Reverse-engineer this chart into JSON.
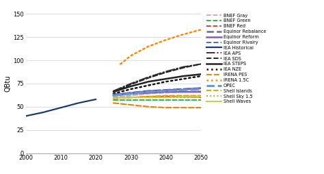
{
  "ylabel": "QBtu",
  "xlim": [
    2000,
    2050
  ],
  "ylim": [
    0,
    150
  ],
  "yticks": [
    0,
    25,
    50,
    75,
    100,
    125,
    150
  ],
  "xticks": [
    2000,
    2010,
    2020,
    2030,
    2040,
    2050
  ],
  "background_color": "#ffffff",
  "series": [
    {
      "name": "IEA Historical",
      "color": "#1b3a6b",
      "linestyle": "solid",
      "linewidth": 1.6,
      "x": [
        2000,
        2005,
        2010,
        2015,
        2020
      ],
      "y": [
        40,
        44,
        49,
        54,
        58
      ]
    },
    {
      "name": "IEA STEPS",
      "color": "#222222",
      "linestyle": "solid",
      "linewidth": 1.8,
      "x": [
        2025,
        2030,
        2035,
        2040,
        2045,
        2050
      ],
      "y": [
        66,
        72,
        77,
        80,
        83,
        85
      ]
    },
    {
      "name": "IEA APS",
      "color": "#333333",
      "linestyle": "dashdot",
      "linewidth": 1.4,
      "x": [
        2025,
        2030,
        2035,
        2040,
        2045,
        2050
      ],
      "y": [
        67,
        75,
        82,
        88,
        93,
        96
      ]
    },
    {
      "name": "IEA SDS",
      "color": "#222222",
      "linestyle": "dashed",
      "linewidth": 1.4,
      "x": [
        2025,
        2030,
        2035,
        2040,
        2045,
        2050
      ],
      "y": [
        66,
        74,
        81,
        87,
        92,
        96
      ]
    },
    {
      "name": "IEA NZE",
      "color": "#111111",
      "linestyle": "dotted",
      "linewidth": 1.8,
      "x": [
        2025,
        2030,
        2035,
        2040,
        2045,
        2050
      ],
      "y": [
        64,
        69,
        73,
        77,
        80,
        83
      ]
    },
    {
      "name": "BNEF Gray",
      "color": "#c8a8a8",
      "linestyle": "dashed",
      "linewidth": 1.3,
      "x": [
        2025,
        2030,
        2035,
        2040,
        2045,
        2050
      ],
      "y": [
        60,
        62,
        64,
        65,
        66,
        67
      ]
    },
    {
      "name": "BNEF Green",
      "color": "#22aa44",
      "linestyle": "dashed",
      "linewidth": 1.3,
      "x": [
        2025,
        2030,
        2035,
        2040,
        2045,
        2050
      ],
      "y": [
        57,
        57,
        57,
        57,
        57,
        57
      ]
    },
    {
      "name": "BNEF Red",
      "color": "#cc3333",
      "linestyle": "dashed",
      "linewidth": 1.3,
      "x": [
        2025,
        2030,
        2035,
        2040,
        2045,
        2050
      ],
      "y": [
        59,
        60,
        61,
        61,
        61,
        60
      ]
    },
    {
      "name": "Equinor Rebalance",
      "color": "#7070bb",
      "linestyle": "dashed",
      "linewidth": 2.0,
      "x": [
        2025,
        2030,
        2035,
        2040,
        2045,
        2050
      ],
      "y": [
        63,
        65,
        67,
        68,
        69,
        70
      ]
    },
    {
      "name": "Equinor Reform",
      "color": "#8855cc",
      "linestyle": "solid",
      "linewidth": 1.8,
      "x": [
        2025,
        2030,
        2035,
        2040,
        2045,
        2050
      ],
      "y": [
        62,
        64,
        65,
        66,
        66,
        66
      ]
    },
    {
      "name": "Equinor Rivalry",
      "color": "#5566bb",
      "linestyle": "dashed",
      "linewidth": 1.4,
      "x": [
        2025,
        2030,
        2035,
        2040,
        2045,
        2050
      ],
      "y": [
        63,
        65,
        67,
        68,
        69,
        70
      ]
    },
    {
      "name": "IRENA PES",
      "color": "#dd8800",
      "linestyle": "dashed",
      "linewidth": 1.5,
      "x": [
        2025,
        2030,
        2035,
        2040,
        2045,
        2050
      ],
      "y": [
        54,
        52,
        50,
        49,
        49,
        49
      ]
    },
    {
      "name": "IRENA 1.5C",
      "color": "#ff8800",
      "linestyle": "dotted",
      "linewidth": 1.8,
      "x": [
        2027,
        2030,
        2035,
        2040,
        2045,
        2050
      ],
      "y": [
        96,
        105,
        115,
        122,
        128,
        133
      ]
    },
    {
      "name": "OPEC",
      "color": "#6699cc",
      "linestyle": "dashed",
      "linewidth": 2.2,
      "x": [
        2025,
        2030,
        2035,
        2040,
        2045,
        2050
      ],
      "y": [
        62,
        64,
        66,
        67,
        68,
        69
      ]
    },
    {
      "name": "Shell Islands",
      "color": "#ccaa00",
      "linestyle": "dashed",
      "linewidth": 1.4,
      "x": [
        2025,
        2030,
        2035,
        2040,
        2045,
        2050
      ],
      "y": [
        59,
        60,
        61,
        62,
        62,
        62
      ]
    },
    {
      "name": "Shell Sky 1.5",
      "color": "#aaaa33",
      "linestyle": "dotted",
      "linewidth": 1.4,
      "x": [
        2025,
        2030,
        2035,
        2040,
        2045,
        2050
      ],
      "y": [
        59,
        60,
        60,
        60,
        60,
        60
      ]
    },
    {
      "name": "Shell Waves",
      "color": "#cccc44",
      "linestyle": "solid",
      "linewidth": 1.4,
      "x": [
        2025,
        2030,
        2035,
        2040,
        2045,
        2050
      ],
      "y": [
        59,
        60,
        60,
        60,
        61,
        61
      ]
    }
  ],
  "legend_order": [
    {
      "name": "BNEF Gray",
      "color": "#c8a8a8",
      "linestyle": "dashed",
      "linewidth": 1.3
    },
    {
      "name": "BNEF Green",
      "color": "#22aa44",
      "linestyle": "dashed",
      "linewidth": 1.3
    },
    {
      "name": "BNEF Red",
      "color": "#cc3333",
      "linestyle": "dashed",
      "linewidth": 1.3
    },
    {
      "name": "Equinor Rebalance",
      "color": "#7070bb",
      "linestyle": "dashed",
      "linewidth": 2.0
    },
    {
      "name": "Equinor Reform",
      "color": "#8855cc",
      "linestyle": "solid",
      "linewidth": 1.8
    },
    {
      "name": "Equinor Rivalry",
      "color": "#5566bb",
      "linestyle": "dashed",
      "linewidth": 1.4
    },
    {
      "name": "IEA Historical",
      "color": "#1b3a6b",
      "linestyle": "solid",
      "linewidth": 1.6
    },
    {
      "name": "IEA APS",
      "color": "#333333",
      "linestyle": "dashdot",
      "linewidth": 1.4
    },
    {
      "name": "IEA SDS",
      "color": "#222222",
      "linestyle": "dashed",
      "linewidth": 1.4
    },
    {
      "name": "IEA STEPS",
      "color": "#222222",
      "linestyle": "solid",
      "linewidth": 1.8
    },
    {
      "name": "IEA NZE",
      "color": "#111111",
      "linestyle": "dotted",
      "linewidth": 1.8
    },
    {
      "name": "IRENA PES",
      "color": "#dd8800",
      "linestyle": "dashed",
      "linewidth": 1.5
    },
    {
      "name": "IRENA 1.5C",
      "color": "#ff8800",
      "linestyle": "dotted",
      "linewidth": 1.8
    },
    {
      "name": "OPEC",
      "color": "#6699cc",
      "linestyle": "dashed",
      "linewidth": 2.2
    },
    {
      "name": "Shell Islands",
      "color": "#ccaa00",
      "linestyle": "dashed",
      "linewidth": 1.4
    },
    {
      "name": "Shell Sky 1.5",
      "color": "#aaaa33",
      "linestyle": "dotted",
      "linewidth": 1.4
    },
    {
      "name": "Shell Waves",
      "color": "#cccc44",
      "linestyle": "solid",
      "linewidth": 1.4
    }
  ]
}
